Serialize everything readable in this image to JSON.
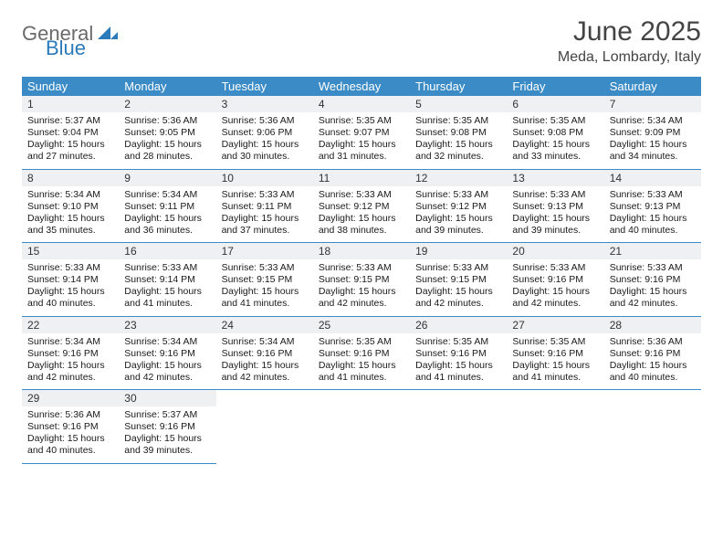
{
  "logo": {
    "part1": "General",
    "part2": "Blue",
    "triangle_color": "#2b7bba"
  },
  "title": "June 2025",
  "location": "Meda, Lombardy, Italy",
  "weekdays": [
    "Sunday",
    "Monday",
    "Tuesday",
    "Wednesday",
    "Thursday",
    "Friday",
    "Saturday"
  ],
  "header_bg": "#3b8bc6",
  "header_fg": "#ffffff",
  "daynum_bg": "#eef0f1",
  "border_color": "#3b8bc6",
  "text_color": "#1a1a1a",
  "font_family": "Arial",
  "month_fontsize": 30,
  "location_fontsize": 16,
  "header_fontsize": 13,
  "daynum_fontsize": 12,
  "body_fontsize": 10.5,
  "days": [
    {
      "n": 1,
      "sunrise": "5:37 AM",
      "sunset": "9:04 PM",
      "dl_h": 15,
      "dl_m": 27
    },
    {
      "n": 2,
      "sunrise": "5:36 AM",
      "sunset": "9:05 PM",
      "dl_h": 15,
      "dl_m": 28
    },
    {
      "n": 3,
      "sunrise": "5:36 AM",
      "sunset": "9:06 PM",
      "dl_h": 15,
      "dl_m": 30
    },
    {
      "n": 4,
      "sunrise": "5:35 AM",
      "sunset": "9:07 PM",
      "dl_h": 15,
      "dl_m": 31
    },
    {
      "n": 5,
      "sunrise": "5:35 AM",
      "sunset": "9:08 PM",
      "dl_h": 15,
      "dl_m": 32
    },
    {
      "n": 6,
      "sunrise": "5:35 AM",
      "sunset": "9:08 PM",
      "dl_h": 15,
      "dl_m": 33
    },
    {
      "n": 7,
      "sunrise": "5:34 AM",
      "sunset": "9:09 PM",
      "dl_h": 15,
      "dl_m": 34
    },
    {
      "n": 8,
      "sunrise": "5:34 AM",
      "sunset": "9:10 PM",
      "dl_h": 15,
      "dl_m": 35
    },
    {
      "n": 9,
      "sunrise": "5:34 AM",
      "sunset": "9:11 PM",
      "dl_h": 15,
      "dl_m": 36
    },
    {
      "n": 10,
      "sunrise": "5:33 AM",
      "sunset": "9:11 PM",
      "dl_h": 15,
      "dl_m": 37
    },
    {
      "n": 11,
      "sunrise": "5:33 AM",
      "sunset": "9:12 PM",
      "dl_h": 15,
      "dl_m": 38
    },
    {
      "n": 12,
      "sunrise": "5:33 AM",
      "sunset": "9:12 PM",
      "dl_h": 15,
      "dl_m": 39
    },
    {
      "n": 13,
      "sunrise": "5:33 AM",
      "sunset": "9:13 PM",
      "dl_h": 15,
      "dl_m": 39
    },
    {
      "n": 14,
      "sunrise": "5:33 AM",
      "sunset": "9:13 PM",
      "dl_h": 15,
      "dl_m": 40
    },
    {
      "n": 15,
      "sunrise": "5:33 AM",
      "sunset": "9:14 PM",
      "dl_h": 15,
      "dl_m": 40
    },
    {
      "n": 16,
      "sunrise": "5:33 AM",
      "sunset": "9:14 PM",
      "dl_h": 15,
      "dl_m": 41
    },
    {
      "n": 17,
      "sunrise": "5:33 AM",
      "sunset": "9:15 PM",
      "dl_h": 15,
      "dl_m": 41
    },
    {
      "n": 18,
      "sunrise": "5:33 AM",
      "sunset": "9:15 PM",
      "dl_h": 15,
      "dl_m": 42
    },
    {
      "n": 19,
      "sunrise": "5:33 AM",
      "sunset": "9:15 PM",
      "dl_h": 15,
      "dl_m": 42
    },
    {
      "n": 20,
      "sunrise": "5:33 AM",
      "sunset": "9:16 PM",
      "dl_h": 15,
      "dl_m": 42
    },
    {
      "n": 21,
      "sunrise": "5:33 AM",
      "sunset": "9:16 PM",
      "dl_h": 15,
      "dl_m": 42
    },
    {
      "n": 22,
      "sunrise": "5:34 AM",
      "sunset": "9:16 PM",
      "dl_h": 15,
      "dl_m": 42
    },
    {
      "n": 23,
      "sunrise": "5:34 AM",
      "sunset": "9:16 PM",
      "dl_h": 15,
      "dl_m": 42
    },
    {
      "n": 24,
      "sunrise": "5:34 AM",
      "sunset": "9:16 PM",
      "dl_h": 15,
      "dl_m": 42
    },
    {
      "n": 25,
      "sunrise": "5:35 AM",
      "sunset": "9:16 PM",
      "dl_h": 15,
      "dl_m": 41
    },
    {
      "n": 26,
      "sunrise": "5:35 AM",
      "sunset": "9:16 PM",
      "dl_h": 15,
      "dl_m": 41
    },
    {
      "n": 27,
      "sunrise": "5:35 AM",
      "sunset": "9:16 PM",
      "dl_h": 15,
      "dl_m": 41
    },
    {
      "n": 28,
      "sunrise": "5:36 AM",
      "sunset": "9:16 PM",
      "dl_h": 15,
      "dl_m": 40
    },
    {
      "n": 29,
      "sunrise": "5:36 AM",
      "sunset": "9:16 PM",
      "dl_h": 15,
      "dl_m": 40
    },
    {
      "n": 30,
      "sunrise": "5:37 AM",
      "sunset": "9:16 PM",
      "dl_h": 15,
      "dl_m": 39
    }
  ],
  "first_weekday_index": 0,
  "total_cells": 35
}
